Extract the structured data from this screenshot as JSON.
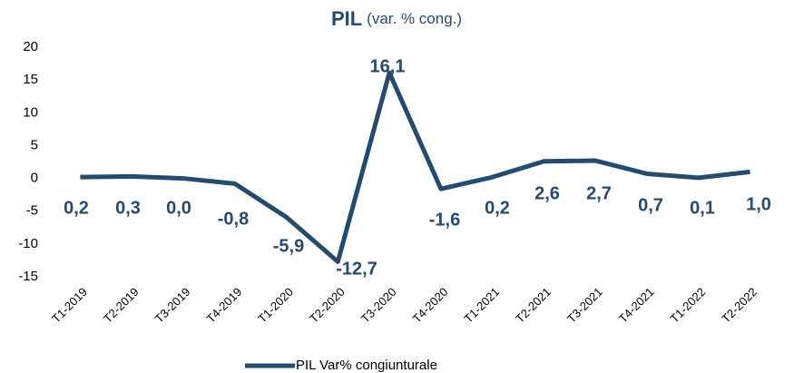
{
  "chart_data": {
    "type": "line",
    "title": "PIL",
    "subtitle": "(var. % cong.)",
    "categories": [
      "T1-2019",
      "T2-2019",
      "T3-2019",
      "T4-2019",
      "T1-2020",
      "T2-2020",
      "T3-2020",
      "T4-2020",
      "T1-2021",
      "T2-2021",
      "T3-2021",
      "T4-2021",
      "T1-2022",
      "T2-2022"
    ],
    "series": [
      {
        "name": "PIL Var% congiunturale",
        "color": "#264b6e",
        "values": [
          0.2,
          0.3,
          0.0,
          -0.8,
          -5.9,
          -12.7,
          16.1,
          -1.6,
          0.2,
          2.6,
          2.7,
          0.7,
          0.1,
          1.0
        ],
        "value_labels": [
          "0,2",
          "0,3",
          "0,0",
          "-0,8",
          "-5,9",
          "-12,7",
          "16,1",
          "-1,6",
          "0,2",
          "2,6",
          "2,7",
          "0,7",
          "0,1",
          "1,0"
        ]
      }
    ],
    "ylim": [
      -15,
      20
    ],
    "yticks": [
      -15,
      -10,
      -5,
      0,
      5,
      10,
      15,
      20
    ],
    "grid": false
  }
}
